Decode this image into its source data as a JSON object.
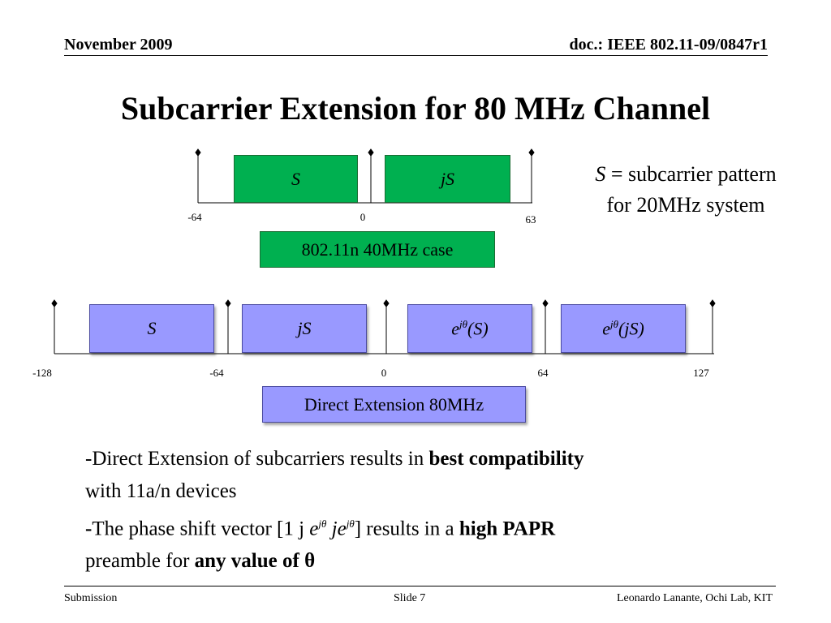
{
  "header": {
    "left": "November  2009",
    "right": "doc.: IEEE 802.11-09/0847r1"
  },
  "title": "Subcarrier Extension for 80 MHz Channel",
  "diagram40": {
    "blocks": [
      "S",
      "jS"
    ],
    "ticks": [
      "-64",
      "0",
      "63"
    ],
    "caption": "802.11n 40MHz case",
    "color": "#00b050"
  },
  "note": {
    "sym": "S",
    "line1": " = subcarrier pattern",
    "line2": "for 20MHz system"
  },
  "diagram80": {
    "blocks": [
      {
        "base": "S",
        "sup": "",
        "tail": ""
      },
      {
        "base": "jS",
        "sup": "",
        "tail": ""
      },
      {
        "base": "e",
        "sup": "jθ",
        "tail": "(S)"
      },
      {
        "base": "e",
        "sup": "jθ",
        "tail": "(jS)"
      }
    ],
    "ticks": [
      "-128",
      "-64",
      "0",
      "64",
      "127"
    ],
    "caption": "Direct Extension 80MHz",
    "color": "#9999ff"
  },
  "body": {
    "p1_a": "-Direct Extension of subcarriers results in ",
    "p1_b": "best compatibility",
    "p1_c": "with 11a/n devices",
    "p2_dash": "-",
    "p2_a": "The phase shift vector [1 j ",
    "p2_e": "e",
    "p2_sup1": "jθ",
    "p2_je": " je",
    "p2_sup2": "jθ",
    "p2_b": "] results in a ",
    "p2_c": "high PAPR",
    "p2_d": "preamble for ",
    "p2_e2": "any value of θ"
  },
  "footer": {
    "left": "Submission",
    "center": "Slide 7",
    "right": "Leonardo Lanante, Ochi Lab, KIT"
  }
}
